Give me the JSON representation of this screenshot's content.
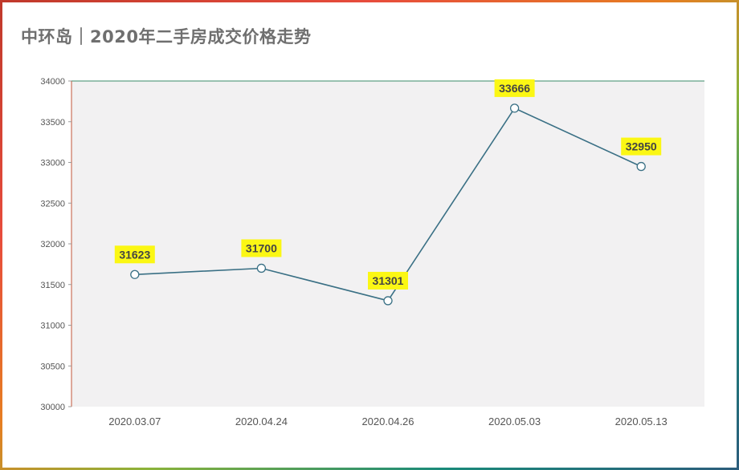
{
  "title": "中环岛｜2020年二手房成交价格走势",
  "colors": {
    "plot_bg": "#f2f1f2",
    "line": "#3a7085",
    "label_bg": "#fbf714",
    "frame_gradient": [
      "#c0392b",
      "#e67e22",
      "#f1c40f",
      "#27ae60",
      "#1a7a8a",
      "#2c6d7c"
    ]
  },
  "chart_data": {
    "type": "line",
    "title": "中环岛｜2020年二手房成交价格走势",
    "xlabel": "",
    "ylabel": "",
    "categories": [
      "2020.03.07",
      "2020.04.24",
      "2020.04.26",
      "2020.05.03",
      "2020.05.13"
    ],
    "series": [
      {
        "values": [
          31623,
          31700,
          31301,
          33666,
          32950
        ]
      }
    ],
    "ylim": [
      30000,
      34000
    ],
    "yticks": [
      "30000",
      "30500",
      "31000",
      "31500",
      "32000",
      "32500",
      "33000",
      "33500",
      "34000"
    ],
    "data_labels": [
      "31623",
      "31700",
      "31301",
      "33666",
      "32950"
    ],
    "grid": false,
    "legend": "none"
  }
}
